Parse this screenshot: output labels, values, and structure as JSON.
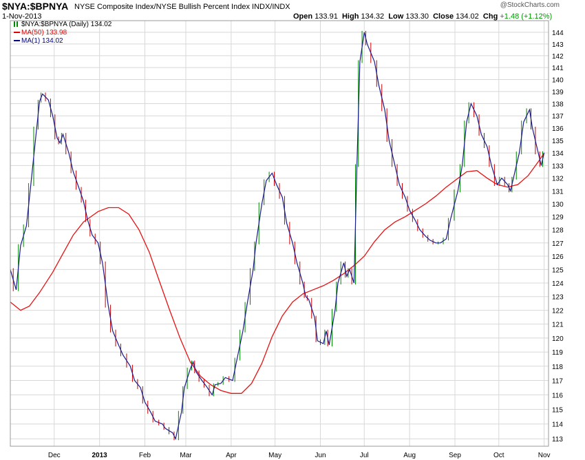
{
  "header": {
    "symbol": "$NYA:$BPNYA",
    "description": "NYSE Composite Index/NYSE Bullish Percent Index  INDX/INDX",
    "date": "1-Nov-2013",
    "watermark": "@StockCharts.com",
    "quote": {
      "open_label": "Open",
      "open": "133.91",
      "high_label": "High",
      "high": "134.32",
      "low_label": "Low",
      "low": "133.30",
      "close_label": "Close",
      "close": "134.02",
      "chg_label": "Chg",
      "chg": "+1.48 (+1.12%)",
      "chg_color": "#009900"
    }
  },
  "legend": [
    {
      "text": "$NYA:$BPNYA (Daily) 134.02",
      "color": "#000000",
      "icon": "price-bars-icon"
    },
    {
      "text": "MA(50) 133.98",
      "color": "#e00000",
      "icon": "line-swatch-icon"
    },
    {
      "text": "MA(1) 134.02",
      "color": "#000080",
      "icon": "line-swatch-icon"
    }
  ],
  "colors": {
    "price_line": "#1a1a8c",
    "ma50": "#e81010",
    "bar_up": "#008800",
    "bar_down": "#cc0000",
    "grid": "#d8d8d8",
    "frame": "#9a9a9a",
    "background": "#ffffff"
  },
  "chart_data": {
    "type": "line",
    "title": "$NYA:$BPNYA",
    "xlabel": "",
    "ylabel": "",
    "ylim": [
      112.5,
      145
    ],
    "y_scale": "log",
    "y_ticks": [
      113,
      114,
      115,
      116,
      117,
      118,
      119,
      120,
      121,
      122,
      123,
      124,
      125,
      126,
      127,
      128,
      129,
      130,
      131,
      132,
      133,
      134,
      135,
      136,
      137,
      138,
      139,
      140,
      141,
      142,
      143,
      144
    ],
    "x_ticks": [
      {
        "label": "Dec",
        "date": "2012-12-01"
      },
      {
        "label": "2013",
        "date": "2013-01-01"
      },
      {
        "label": "Feb",
        "date": "2013-02-01"
      },
      {
        "label": "Mar",
        "date": "2013-03-01"
      },
      {
        "label": "Apr",
        "date": "2013-04-01"
      },
      {
        "label": "May",
        "date": "2013-05-01"
      },
      {
        "label": "Jun",
        "date": "2013-06-01"
      },
      {
        "label": "Jul",
        "date": "2013-07-01"
      },
      {
        "label": "Aug",
        "date": "2013-08-01"
      },
      {
        "label": "Sep",
        "date": "2013-09-01"
      },
      {
        "label": "Oct",
        "date": "2013-10-01"
      },
      {
        "label": "Nov",
        "date": "2013-11-01"
      }
    ],
    "xlim": [
      "2012-11-01",
      "2013-11-04"
    ],
    "grid": true,
    "legend_position": "top-left",
    "series": [
      {
        "name": "MA(1)",
        "points": [
          [
            "2012-11-01",
            125.0
          ],
          [
            "2012-11-05",
            123.5
          ],
          [
            "2012-11-08",
            126.8
          ],
          [
            "2012-11-12",
            128.3
          ],
          [
            "2012-11-15",
            131.5
          ],
          [
            "2012-11-19",
            136.0
          ],
          [
            "2012-11-21",
            138.2
          ],
          [
            "2012-11-23",
            138.8
          ],
          [
            "2012-11-27",
            138.3
          ],
          [
            "2012-11-30",
            137.0
          ],
          [
            "2012-12-03",
            135.2
          ],
          [
            "2012-12-05",
            134.8
          ],
          [
            "2012-12-07",
            135.5
          ],
          [
            "2012-12-11",
            134.0
          ],
          [
            "2012-12-14",
            132.5
          ],
          [
            "2012-12-18",
            131.2
          ],
          [
            "2012-12-21",
            130.2
          ],
          [
            "2012-12-24",
            128.7
          ],
          [
            "2012-12-27",
            127.6
          ],
          [
            "2012-12-31",
            127.0
          ],
          [
            "2013-01-03",
            125.5
          ],
          [
            "2013-01-07",
            122.3
          ],
          [
            "2013-01-10",
            120.5
          ],
          [
            "2013-01-14",
            119.5
          ],
          [
            "2013-01-17",
            118.8
          ],
          [
            "2013-01-22",
            118.0
          ],
          [
            "2013-01-25",
            117.0
          ],
          [
            "2013-01-29",
            116.5
          ],
          [
            "2013-02-01",
            115.5
          ],
          [
            "2013-02-05",
            114.8
          ],
          [
            "2013-02-08",
            114.2
          ],
          [
            "2013-02-13",
            114.0
          ],
          [
            "2013-02-15",
            113.7
          ],
          [
            "2013-02-20",
            113.4
          ],
          [
            "2013-02-22",
            113.0
          ],
          [
            "2013-02-26",
            114.8
          ],
          [
            "2013-02-28",
            116.5
          ],
          [
            "2013-03-04",
            117.8
          ],
          [
            "2013-03-06",
            118.3
          ],
          [
            "2013-03-08",
            117.6
          ],
          [
            "2013-03-12",
            117.0
          ],
          [
            "2013-03-15",
            116.6
          ],
          [
            "2013-03-19",
            116.0
          ],
          [
            "2013-03-21",
            116.7
          ],
          [
            "2013-03-25",
            116.8
          ],
          [
            "2013-03-28",
            117.2
          ],
          [
            "2013-04-02",
            117.0
          ],
          [
            "2013-04-05",
            118.5
          ],
          [
            "2013-04-09",
            120.5
          ],
          [
            "2013-04-12",
            122.5
          ],
          [
            "2013-04-16",
            125.0
          ],
          [
            "2013-04-18",
            127.0
          ],
          [
            "2013-04-22",
            130.0
          ],
          [
            "2013-04-25",
            131.8
          ],
          [
            "2013-04-29",
            132.4
          ],
          [
            "2013-05-02",
            131.5
          ],
          [
            "2013-05-06",
            130.5
          ],
          [
            "2013-05-09",
            128.5
          ],
          [
            "2013-05-13",
            127.0
          ],
          [
            "2013-05-16",
            125.5
          ],
          [
            "2013-05-20",
            124.0
          ],
          [
            "2013-05-22",
            123.0
          ],
          [
            "2013-05-24",
            122.8
          ],
          [
            "2013-05-28",
            121.5
          ],
          [
            "2013-05-30",
            119.8
          ],
          [
            "2013-06-03",
            119.6
          ],
          [
            "2013-06-05",
            120.5
          ],
          [
            "2013-06-07",
            119.5
          ],
          [
            "2013-06-11",
            122.0
          ],
          [
            "2013-06-13",
            124.0
          ],
          [
            "2013-06-17",
            125.5
          ],
          [
            "2013-06-19",
            124.5
          ],
          [
            "2013-06-21",
            125.0
          ],
          [
            "2013-06-24",
            124.0
          ],
          [
            "2013-06-26",
            133.0
          ],
          [
            "2013-06-28",
            141.5
          ],
          [
            "2013-07-01",
            144.0
          ],
          [
            "2013-07-03",
            143.0
          ],
          [
            "2013-07-08",
            141.5
          ],
          [
            "2013-07-11",
            139.5
          ],
          [
            "2013-07-15",
            137.5
          ],
          [
            "2013-07-18",
            135.0
          ],
          [
            "2013-07-22",
            133.0
          ],
          [
            "2013-07-25",
            131.5
          ],
          [
            "2013-07-29",
            130.5
          ],
          [
            "2013-08-01",
            129.5
          ],
          [
            "2013-08-05",
            128.7
          ],
          [
            "2013-08-08",
            128.0
          ],
          [
            "2013-08-12",
            127.5
          ],
          [
            "2013-08-15",
            127.2
          ],
          [
            "2013-08-19",
            127.0
          ],
          [
            "2013-08-22",
            127.0
          ],
          [
            "2013-08-26",
            127.3
          ],
          [
            "2013-08-29",
            128.8
          ],
          [
            "2013-09-03",
            131.0
          ],
          [
            "2013-09-06",
            133.0
          ],
          [
            "2013-09-09",
            136.5
          ],
          [
            "2013-09-12",
            138.0
          ],
          [
            "2013-09-16",
            137.0
          ],
          [
            "2013-09-19",
            135.5
          ],
          [
            "2013-09-23",
            134.5
          ],
          [
            "2013-09-26",
            133.0
          ],
          [
            "2013-09-30",
            131.5
          ],
          [
            "2013-10-03",
            132.0
          ],
          [
            "2013-10-07",
            131.5
          ],
          [
            "2013-10-09",
            131.0
          ],
          [
            "2013-10-11",
            132.0
          ],
          [
            "2013-10-15",
            134.0
          ],
          [
            "2013-10-18",
            136.5
          ],
          [
            "2013-10-22",
            137.5
          ],
          [
            "2013-10-24",
            136.0
          ],
          [
            "2013-10-28",
            134.0
          ],
          [
            "2013-10-30",
            133.0
          ],
          [
            "2013-11-01",
            134.02
          ]
        ]
      },
      {
        "name": "MA(50)",
        "points": [
          [
            "2012-11-01",
            122.6
          ],
          [
            "2012-11-08",
            122.0
          ],
          [
            "2012-11-14",
            122.3
          ],
          [
            "2012-11-21",
            123.3
          ],
          [
            "2012-11-30",
            124.8
          ],
          [
            "2012-12-07",
            126.2
          ],
          [
            "2012-12-14",
            127.6
          ],
          [
            "2012-12-21",
            128.6
          ],
          [
            "2012-12-31",
            129.4
          ],
          [
            "2013-01-07",
            129.7
          ],
          [
            "2013-01-14",
            129.7
          ],
          [
            "2013-01-21",
            129.2
          ],
          [
            "2013-01-28",
            128.0
          ],
          [
            "2013-02-04",
            126.3
          ],
          [
            "2013-02-11",
            124.1
          ],
          [
            "2013-02-18",
            122.0
          ],
          [
            "2013-02-25",
            120.0
          ],
          [
            "2013-03-04",
            118.3
          ],
          [
            "2013-03-11",
            117.3
          ],
          [
            "2013-03-18",
            116.7
          ],
          [
            "2013-03-25",
            116.3
          ],
          [
            "2013-04-01",
            116.1
          ],
          [
            "2013-04-08",
            116.1
          ],
          [
            "2013-04-15",
            116.8
          ],
          [
            "2013-04-22",
            118.2
          ],
          [
            "2013-04-29",
            120.1
          ],
          [
            "2013-05-06",
            121.6
          ],
          [
            "2013-05-13",
            122.6
          ],
          [
            "2013-05-20",
            123.2
          ],
          [
            "2013-05-27",
            123.5
          ],
          [
            "2013-06-03",
            123.8
          ],
          [
            "2013-06-10",
            124.2
          ],
          [
            "2013-06-17",
            124.7
          ],
          [
            "2013-06-24",
            125.3
          ],
          [
            "2013-07-01",
            126.0
          ],
          [
            "2013-07-08",
            127.1
          ],
          [
            "2013-07-15",
            128.0
          ],
          [
            "2013-07-22",
            128.6
          ],
          [
            "2013-07-29",
            129.0
          ],
          [
            "2013-08-05",
            129.5
          ],
          [
            "2013-08-12",
            130.0
          ],
          [
            "2013-08-19",
            130.6
          ],
          [
            "2013-08-26",
            131.3
          ],
          [
            "2013-09-02",
            131.9
          ],
          [
            "2013-09-09",
            132.5
          ],
          [
            "2013-09-16",
            132.6
          ],
          [
            "2013-09-23",
            132.0
          ],
          [
            "2013-09-30",
            131.5
          ],
          [
            "2013-10-07",
            131.3
          ],
          [
            "2013-10-14",
            131.5
          ],
          [
            "2013-10-21",
            132.2
          ],
          [
            "2013-10-28",
            133.3
          ],
          [
            "2013-11-01",
            133.98
          ]
        ]
      }
    ]
  }
}
